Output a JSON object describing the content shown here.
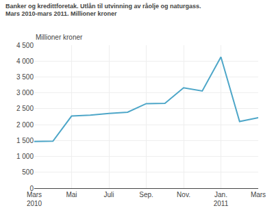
{
  "chart_data": {
    "type": "line",
    "title": "Banker og kredittforetak. Utlån til utvinning av råolje og naturgass.",
    "subtitle": "Mars 2010-mars 2011. Millioner kroner",
    "y_label": "Millioner kroner",
    "categories": [
      "Mars\n2010",
      null,
      "Mai",
      null,
      "Juli",
      null,
      "Sep.",
      null,
      "Nov.",
      null,
      "Jan.\n2011",
      null,
      "Mars"
    ],
    "values": [
      1470,
      1480,
      2270,
      2300,
      2350,
      2390,
      2660,
      2670,
      3160,
      3060,
      4130,
      2100,
      2220
    ],
    "color": "#4da6c8",
    "ylim": [
      0,
      4500
    ],
    "yticks": [
      0,
      500,
      {
        "value": 1000,
        "label": "1 000"
      },
      {
        "value": 1500,
        "label": "1 500"
      },
      {
        "value": 2000,
        "label": "2 000"
      },
      {
        "value": 2500,
        "label": "2 500"
      },
      {
        "value": 3000,
        "label": "3 000"
      },
      {
        "value": 3500,
        "label": "3 500"
      },
      {
        "value": 4000,
        "label": "4 000"
      },
      {
        "value": 4500,
        "label": "4 500"
      }
    ],
    "grid": true
  }
}
